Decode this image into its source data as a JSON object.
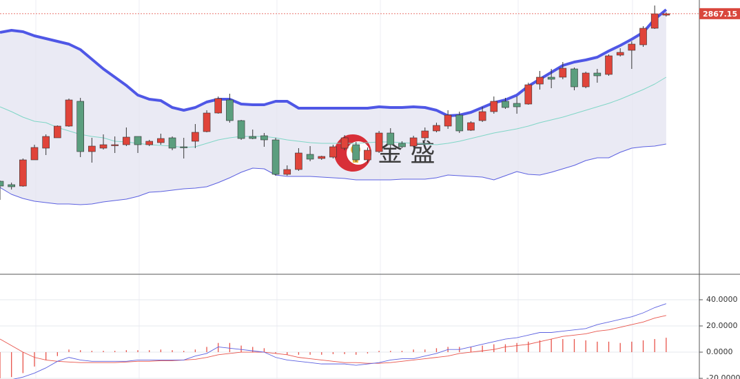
{
  "chart_data": [
    {
      "type": "candlestick",
      "up_color": "#e0443a",
      "down_color": "#5b9e7e",
      "upper_color": "#4f57e6",
      "middle_color": "#7fd6c6",
      "lower_color": "#5a5fe0",
      "band_fill": "#e3e3f0",
      "ylim": [
        2489,
        2887
      ],
      "watermark": "金 盛",
      "open": [
        2624,
        2619,
        2617,
        2655,
        2672,
        2687,
        2704,
        2740,
        2667,
        2672,
        2676,
        2677,
        2689,
        2677,
        2680,
        2687,
        2674,
        2682,
        2696,
        2723,
        2742,
        2712,
        2689,
        2690,
        2684,
        2634,
        2641,
        2663,
        2657,
        2659,
        2672,
        2677,
        2655,
        2667,
        2694,
        2679,
        2675,
        2687,
        2697,
        2704,
        2720,
        2698,
        2712,
        2725,
        2740,
        2737,
        2736,
        2765,
        2775,
        2775,
        2787,
        2761,
        2781,
        2779,
        2807,
        2814,
        2822,
        2846,
        2865
      ],
      "high": [
        2625,
        2622,
        2657,
        2677,
        2692,
        2705,
        2744,
        2745,
        2687,
        2692,
        2689,
        2702,
        2689,
        2684,
        2693,
        2689,
        2687,
        2707,
        2727,
        2747,
        2751,
        2713,
        2699,
        2694,
        2687,
        2647,
        2672,
        2675,
        2661,
        2677,
        2691,
        2681,
        2673,
        2697,
        2701,
        2682,
        2690,
        2702,
        2709,
        2727,
        2725,
        2711,
        2732,
        2747,
        2745,
        2747,
        2767,
        2784,
        2787,
        2797,
        2789,
        2783,
        2787,
        2808,
        2817,
        2827,
        2849,
        2879,
        2869
      ],
      "low": [
        2597,
        2612,
        2616,
        2655,
        2662,
        2687,
        2703,
        2659,
        2651,
        2670,
        2665,
        2675,
        2665,
        2675,
        2677,
        2669,
        2657,
        2672,
        2695,
        2722,
        2709,
        2684,
        2685,
        2674,
        2632,
        2632,
        2639,
        2653,
        2655,
        2657,
        2669,
        2652,
        2651,
        2665,
        2672,
        2672,
        2673,
        2682,
        2695,
        2700,
        2694,
        2697,
        2710,
        2722,
        2729,
        2722,
        2735,
        2757,
        2759,
        2772,
        2756,
        2759,
        2767,
        2777,
        2805,
        2787,
        2819,
        2845,
        2863
      ],
      "close": [
        2617,
        2616,
        2655,
        2673,
        2689,
        2704,
        2742,
        2667,
        2675,
        2677,
        2677,
        2688,
        2677,
        2682,
        2686,
        2672,
        2673,
        2695,
        2723,
        2744,
        2712,
        2686,
        2686,
        2684,
        2634,
        2641,
        2665,
        2656,
        2660,
        2674,
        2687,
        2655,
        2669,
        2694,
        2677,
        2674,
        2687,
        2697,
        2705,
        2720,
        2697,
        2709,
        2725,
        2740,
        2731,
        2732,
        2764,
        2775,
        2772,
        2788,
        2761,
        2781,
        2777,
        2806,
        2811,
        2823,
        2846,
        2867,
        2867.15
      ],
      "upper": [
        2840,
        2843,
        2841,
        2835,
        2831,
        2827,
        2823,
        2815,
        2801,
        2787,
        2775,
        2763,
        2749,
        2743,
        2741,
        2731,
        2727,
        2731,
        2739,
        2743,
        2743,
        2736,
        2735,
        2735,
        2740,
        2740,
        2730,
        2730,
        2730,
        2730,
        2730,
        2730,
        2730,
        2732,
        2731,
        2731,
        2732,
        2731,
        2727,
        2719,
        2720,
        2724,
        2731,
        2738,
        2742,
        2749,
        2762,
        2772,
        2782,
        2792,
        2797,
        2800,
        2804,
        2813,
        2821,
        2830,
        2840,
        2859,
        2873
      ],
      "middle": [
        2732,
        2725,
        2717,
        2711,
        2709,
        2702,
        2697,
        2692,
        2689,
        2687,
        2682,
        2681,
        2679,
        2677,
        2676,
        2675,
        2673,
        2674,
        2679,
        2684,
        2687,
        2689,
        2689,
        2689,
        2687,
        2684,
        2682,
        2680,
        2679,
        2679,
        2679,
        2679,
        2680,
        2681,
        2681,
        2680,
        2679,
        2678,
        2677,
        2679,
        2682,
        2686,
        2690,
        2694,
        2697,
        2700,
        2704,
        2709,
        2713,
        2717,
        2722,
        2727,
        2732,
        2737,
        2743,
        2750,
        2757,
        2765,
        2775
      ],
      "lower": [
        2615,
        2605,
        2599,
        2595,
        2593,
        2591,
        2591,
        2590,
        2591,
        2594,
        2596,
        2598,
        2602,
        2608,
        2609,
        2611,
        2613,
        2614,
        2616,
        2622,
        2629,
        2637,
        2643,
        2642,
        2633,
        2631,
        2631,
        2631,
        2630,
        2629,
        2628,
        2626,
        2626,
        2626,
        2626,
        2627,
        2627,
        2627,
        2629,
        2633,
        2632,
        2631,
        2630,
        2626,
        2632,
        2638,
        2634,
        2633,
        2637,
        2642,
        2647,
        2654,
        2658,
        2658,
        2666,
        2672,
        2674,
        2675,
        2678
      ]
    },
    {
      "type": "macd",
      "dif_color": "#5a5fe0",
      "dea_color": "#e8534a",
      "hist_color": "#e8534a",
      "ylim": [
        -20.5,
        58.4
      ],
      "yticks": [
        {
          "value": -20,
          "label": "-20.0000"
        },
        {
          "value": 0,
          "label": "0.0000"
        },
        {
          "value": 20,
          "label": "20.0000"
        },
        {
          "value": 40,
          "label": "40.0000"
        }
      ],
      "grid": true,
      "dif": [
        -21,
        -21,
        -19,
        -16,
        -12,
        -7,
        -4,
        -6,
        -7,
        -7,
        -7,
        -7,
        -6,
        -6,
        -6,
        -6,
        -6,
        -3,
        -1,
        4,
        3,
        2,
        1,
        0,
        -4,
        -6,
        -7,
        -8,
        -9,
        -9,
        -9,
        -10,
        -9,
        -8,
        -6,
        -5,
        -5,
        -3,
        -1,
        2,
        2,
        4,
        6,
        8,
        10,
        11,
        13,
        15,
        15,
        16,
        17,
        18,
        21,
        23,
        25,
        27,
        30,
        34,
        37
      ],
      "dea": [
        10,
        5,
        0,
        -4,
        -6,
        -7,
        -7.5,
        -8,
        -8,
        -8,
        -8,
        -7.5,
        -7,
        -7,
        -6.5,
        -6.5,
        -6,
        -5.5,
        -4,
        -2,
        -1,
        0,
        0,
        0,
        -1,
        -2,
        -4,
        -5,
        -6,
        -7,
        -8,
        -8,
        -8.5,
        -8.5,
        -8,
        -7,
        -6,
        -5,
        -4,
        -3,
        -1,
        0,
        1,
        2,
        4,
        5,
        6,
        8,
        10,
        12,
        13,
        14,
        16,
        17,
        19,
        21,
        23,
        26,
        28
      ],
      "histogram": [
        -20,
        -19,
        -16,
        -11,
        -6,
        -3,
        2,
        1.5,
        1,
        1,
        1,
        1.5,
        1.5,
        1.5,
        2,
        1.5,
        1,
        2,
        4,
        7,
        7,
        5,
        4,
        3,
        -1,
        -2,
        -2,
        -2,
        -2,
        -1.5,
        -1.5,
        -2,
        -1,
        1,
        1,
        1,
        2,
        2,
        3,
        4,
        4,
        4,
        5,
        6,
        6,
        7,
        8,
        9,
        10,
        10,
        10,
        9,
        8,
        8,
        7,
        8,
        9,
        10,
        11
      ]
    }
  ]
}
